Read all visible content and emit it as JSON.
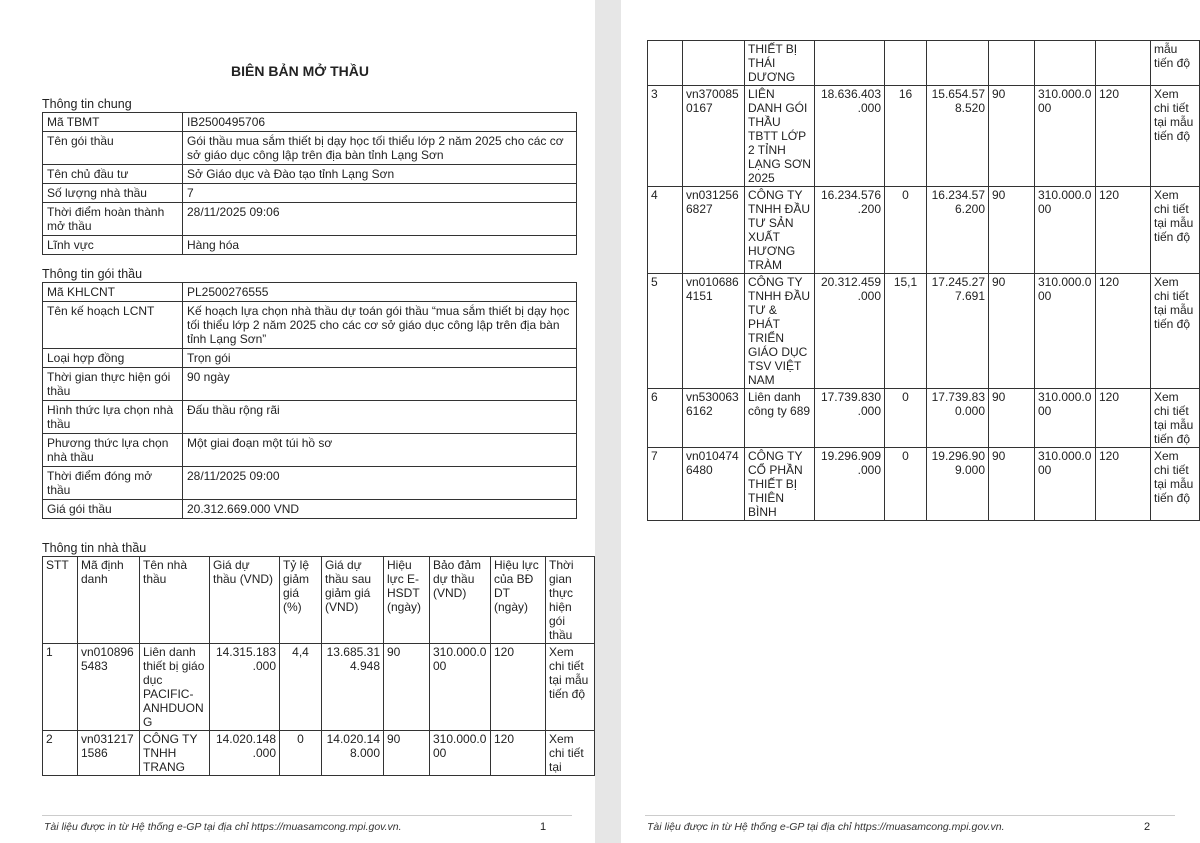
{
  "title": "BIÊN BẢN MỞ THẦU",
  "general": {
    "heading": "Thông tin chung",
    "rows": [
      [
        "Mã TBMT",
        "IB2500495706"
      ],
      [
        "Tên gói thầu",
        "Gói thầu mua sắm thiết bị dạy học tối thiểu lớp 2 năm 2025 cho các cơ sở giáo dục công lập trên địa bàn tỉnh Lạng Sơn"
      ],
      [
        "Tên chủ đầu tư",
        "Sở Giáo dục và Đào tạo tỉnh Lạng Sơn"
      ],
      [
        "Số lượng nhà thầu",
        "7"
      ],
      [
        "Thời điểm hoàn thành mở thầu",
        "28/11/2025 09:06"
      ],
      [
        "Lĩnh vực",
        "Hàng hóa"
      ]
    ]
  },
  "package": {
    "heading": "Thông tin gói thầu",
    "rows": [
      [
        "Mã KHLCNT",
        "PL2500276555"
      ],
      [
        "Tên kế hoạch LCNT",
        "Kế hoạch lựa chọn nhà thầu dự toán gói thầu “mua sắm thiết bị dạy học tối thiểu lớp 2 năm 2025 cho các cơ sở giáo dục công lập trên địa bàn tỉnh Lạng Sơn”"
      ],
      [
        "Loại hợp đồng",
        "Trọn gói"
      ],
      [
        "Thời gian thực hiện gói thầu",
        "90 ngày"
      ],
      [
        "Hình thức lựa chọn nhà thầu",
        "Đấu thầu rộng rãi"
      ],
      [
        "Phương thức lựa chọn nhà thầu",
        "Một giai đoạn một túi hồ sơ"
      ],
      [
        "Thời điểm đóng mở thầu",
        "28/11/2025 09:00"
      ],
      [
        "Giá gói thầu",
        "20.312.669.000 VND"
      ]
    ]
  },
  "bidders": {
    "heading": "Thông tin nhà thầu",
    "columns": [
      "STT",
      "Mã định danh",
      "Tên nhà thầu",
      "Giá dự thầu (VND)",
      "Tỷ lệ giảm giá (%)",
      "Giá dự thầu sau giảm giá (VND)",
      "Hiệu lực E-HSDT (ngày)",
      "Bảo đảm dự thầu (VND)",
      "Hiệu lực của BĐ DT (ngày)",
      "Thời gian thực hiện gói thầu"
    ],
    "page1_rows": [
      [
        "1",
        "vn0108965483",
        "Liên danh thiết bị giáo dục PACIFIC-ANHDUONG",
        "14.315.183.000",
        "4,4",
        "13.685.314.948",
        "90",
        "310.000.000",
        "120",
        "Xem chi tiết tại mẫu tiến độ"
      ],
      [
        "2",
        "vn0312171586",
        "CÔNG TY TNHH TRANG",
        "14.020.148.000",
        "0",
        "14.020.148.000",
        "90",
        "310.000.000",
        "120",
        "Xem chi tiết tại"
      ]
    ],
    "page2_continuation": [
      "",
      "",
      "THIẾT BỊ THÁI DƯƠNG",
      "",
      "",
      "",
      "",
      "",
      "",
      "mẫu tiến độ"
    ],
    "page2_rows": [
      [
        "3",
        "vn3700850167",
        "LIÊN DANH GÓI THẦU TBTT LỚP 2 TỈNH LẠNG SƠN 2025",
        "18.636.403.000",
        "16",
        "15.654.578.520",
        "90",
        "310.000.000",
        "120",
        "Xem chi tiết tại mẫu tiến độ"
      ],
      [
        "4",
        "vn0312566827",
        "CÔNG TY TNHH ĐẦU TƯ SẢN XUẤT HƯƠNG TRÀM",
        "16.234.576.200",
        "0",
        "16.234.576.200",
        "90",
        "310.000.000",
        "120",
        "Xem chi tiết tại mẫu tiến độ"
      ],
      [
        "5",
        "vn0106864151",
        "CÔNG TY TNHH ĐẦU TƯ & PHÁT TRIỂN GIÁO DỤC TSV VIỆT NAM",
        "20.312.459.000",
        "15,1",
        "17.245.277.691",
        "90",
        "310.000.000",
        "120",
        "Xem chi tiết tại mẫu tiến độ"
      ],
      [
        "6",
        "vn5300636162",
        "Liên danh công ty 689",
        "17.739.830.000",
        "0",
        "17.739.830.000",
        "90",
        "310.000.000",
        "120",
        "Xem chi tiết tại mẫu tiến độ"
      ],
      [
        "7",
        "vn0104746480",
        "CÔNG TY CỔ PHẦN THIẾT BỊ THIÊN BÌNH",
        "19.296.909.000",
        "0",
        "19.296.909.000",
        "90",
        "310.000.000",
        "120",
        "Xem chi tiết tại mẫu tiến độ"
      ]
    ]
  },
  "footer": {
    "text": "Tài liệu được in từ Hệ thống e-GP tại địa chỉ https://muasamcong.mpi.gov.vn.",
    "page1": "1",
    "page2": "2"
  }
}
